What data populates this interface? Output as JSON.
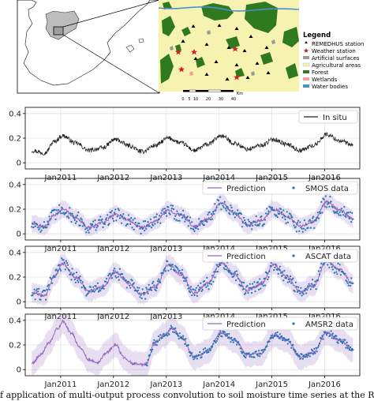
{
  "map_panel": {
    "legend_title": "Legend",
    "legend_items": [
      {
        "label": "REMEDHUS station",
        "symbol": "triangle",
        "color": "#000000"
      },
      {
        "label": "Weather station",
        "symbol": "star",
        "color": "#d42020"
      },
      {
        "label": "Artificial surfaces",
        "symbol": "box",
        "color": "#9a9a9a"
      },
      {
        "label": "Agricultural areas",
        "symbol": "box",
        "color": "#f6f2b0"
      },
      {
        "label": "Forest",
        "symbol": "box",
        "color": "#2f7a1f"
      },
      {
        "label": "Wetlands",
        "symbol": "box",
        "color": "#f0a0a0"
      },
      {
        "label": "Water bodies",
        "symbol": "box",
        "color": "#4b8fd6"
      }
    ],
    "scale_ticks": [
      "0",
      "5",
      "10",
      "20",
      "30",
      "40"
    ],
    "scale_unit": "Km"
  },
  "caption": "f application of multi-output process convolution to soil moisture time series at the REMEDHUS network",
  "chart_data": [
    {
      "type": "line",
      "xlim": [
        "2010-05-01",
        "2016-08-31"
      ],
      "ylim": [
        -0.05,
        0.45
      ],
      "yticks": [
        0,
        0.2,
        0.4
      ],
      "ytick_labels": [
        "0",
        "0.2",
        "0.4"
      ],
      "x_ticks": [
        "2011-01-01",
        "2012-01-01",
        "2013-01-01",
        "2014-01-01",
        "2015-01-01",
        "2016-01-01"
      ],
      "x_tick_labels": [
        "Jan2011",
        "Jan2012",
        "Jan2013",
        "Jan2014",
        "Jan2015",
        "Jan2016"
      ],
      "grid": true,
      "legend_position": "upper right",
      "series": [
        {
          "name": "In situ",
          "kind": "line",
          "color": "#222222",
          "x": [
            "2010-06",
            "2010-09",
            "2010-11",
            "2011-01",
            "2011-04",
            "2011-07",
            "2011-10",
            "2012-01",
            "2012-04",
            "2012-07",
            "2012-10",
            "2013-01",
            "2013-04",
            "2013-07",
            "2013-10",
            "2014-01",
            "2014-04",
            "2014-07",
            "2014-10",
            "2015-01",
            "2015-04",
            "2015-07",
            "2015-10",
            "2016-01",
            "2016-04",
            "2016-07"
          ],
          "y": [
            0.1,
            0.08,
            0.17,
            0.22,
            0.16,
            0.1,
            0.12,
            0.19,
            0.14,
            0.09,
            0.14,
            0.2,
            0.16,
            0.1,
            0.15,
            0.22,
            0.16,
            0.11,
            0.14,
            0.19,
            0.15,
            0.1,
            0.14,
            0.23,
            0.18,
            0.14
          ]
        }
      ]
    },
    {
      "type": "line",
      "xlim": [
        "2010-05-01",
        "2016-08-31"
      ],
      "ylim": [
        -0.05,
        0.45
      ],
      "yticks": [
        0,
        0.2,
        0.4
      ],
      "ytick_labels": [
        "0",
        "0.2",
        "0.4"
      ],
      "x_ticks": [
        "2011-01-01",
        "2012-01-01",
        "2013-01-01",
        "2014-01-01",
        "2015-01-01",
        "2016-01-01"
      ],
      "x_tick_labels": [
        "Jan2011",
        "Jan2012",
        "Jan2013",
        "Jan2014",
        "Jan2015",
        "Jan2016"
      ],
      "grid": true,
      "legend_position": "upper right",
      "series": [
        {
          "name": "Prediction",
          "kind": "line_band",
          "color": "#9467bd",
          "x": [
            "2010-06",
            "2010-09",
            "2010-11",
            "2011-01",
            "2011-04",
            "2011-07",
            "2011-10",
            "2012-01",
            "2012-04",
            "2012-07",
            "2012-10",
            "2013-01",
            "2013-04",
            "2013-07",
            "2013-10",
            "2014-01",
            "2014-04",
            "2014-07",
            "2014-10",
            "2015-01",
            "2015-04",
            "2015-07",
            "2015-10",
            "2016-01",
            "2016-04",
            "2016-07"
          ],
          "y": [
            0.08,
            0.06,
            0.15,
            0.2,
            0.13,
            0.05,
            0.09,
            0.16,
            0.11,
            0.05,
            0.1,
            0.19,
            0.15,
            0.06,
            0.12,
            0.25,
            0.17,
            0.07,
            0.11,
            0.2,
            0.14,
            0.06,
            0.1,
            0.26,
            0.19,
            0.12
          ],
          "band": 0.07
        },
        {
          "name": "SMOS data",
          "kind": "scatter",
          "color": "#1f77b4",
          "x": [
            "2010-06",
            "2010-09",
            "2010-11",
            "2011-01",
            "2011-04",
            "2011-07",
            "2011-10",
            "2012-01",
            "2012-04",
            "2012-07",
            "2012-10",
            "2013-01",
            "2013-04",
            "2013-07",
            "2013-10",
            "2014-01",
            "2014-04",
            "2014-07",
            "2014-10",
            "2015-01",
            "2015-04",
            "2015-07",
            "2015-10",
            "2016-01",
            "2016-04",
            "2016-07"
          ],
          "y": [
            0.08,
            0.06,
            0.15,
            0.2,
            0.13,
            0.05,
            0.09,
            0.16,
            0.11,
            0.05,
            0.1,
            0.19,
            0.15,
            0.06,
            0.12,
            0.25,
            0.17,
            0.07,
            0.11,
            0.2,
            0.14,
            0.06,
            0.1,
            0.26,
            0.19,
            0.12
          ],
          "spread": 0.11
        }
      ]
    },
    {
      "type": "line",
      "xlim": [
        "2010-05-01",
        "2016-08-31"
      ],
      "ylim": [
        -0.05,
        0.45
      ],
      "yticks": [
        0,
        0.2,
        0.4
      ],
      "ytick_labels": [
        "0",
        "0.2",
        "0.4"
      ],
      "x_ticks": [
        "2011-01-01",
        "2012-01-01",
        "2013-01-01",
        "2014-01-01",
        "2015-01-01",
        "2016-01-01"
      ],
      "x_tick_labels": [
        "Jan2011",
        "Jan2012",
        "Jan2013",
        "Jan2014",
        "Jan2015",
        "Jan2016"
      ],
      "grid": true,
      "legend_position": "upper right",
      "series": [
        {
          "name": "Prediction",
          "kind": "line_band",
          "color": "#9467bd",
          "x": [
            "2010-06",
            "2010-09",
            "2010-11",
            "2011-01",
            "2011-04",
            "2011-07",
            "2011-10",
            "2012-01",
            "2012-04",
            "2012-07",
            "2012-10",
            "2013-01",
            "2013-04",
            "2013-07",
            "2013-10",
            "2014-01",
            "2014-04",
            "2014-07",
            "2014-10",
            "2015-01",
            "2015-04",
            "2015-07",
            "2015-10",
            "2016-01",
            "2016-04",
            "2016-07"
          ],
          "y": [
            0.07,
            0.05,
            0.2,
            0.31,
            0.2,
            0.08,
            0.12,
            0.24,
            0.15,
            0.06,
            0.12,
            0.3,
            0.22,
            0.07,
            0.15,
            0.32,
            0.22,
            0.09,
            0.14,
            0.3,
            0.2,
            0.08,
            0.13,
            0.33,
            0.26,
            0.15
          ],
          "band": 0.08
        },
        {
          "name": "ASCAT data",
          "kind": "scatter",
          "color": "#1f77b4",
          "x": [
            "2010-06",
            "2010-09",
            "2010-11",
            "2011-01",
            "2011-04",
            "2011-07",
            "2011-10",
            "2012-01",
            "2012-04",
            "2012-07",
            "2012-10",
            "2013-01",
            "2013-04",
            "2013-07",
            "2013-10",
            "2014-01",
            "2014-04",
            "2014-07",
            "2014-10",
            "2015-01",
            "2015-04",
            "2015-07",
            "2015-10",
            "2016-01",
            "2016-04",
            "2016-07"
          ],
          "y": [
            0.07,
            0.05,
            0.2,
            0.31,
            0.2,
            0.08,
            0.12,
            0.24,
            0.15,
            0.06,
            0.12,
            0.3,
            0.22,
            0.07,
            0.15,
            0.32,
            0.22,
            0.09,
            0.14,
            0.3,
            0.2,
            0.08,
            0.13,
            0.33,
            0.26,
            0.15
          ],
          "spread": 0.1
        }
      ]
    },
    {
      "type": "line",
      "xlim": [
        "2010-05-01",
        "2016-08-31"
      ],
      "ylim": [
        -0.05,
        0.45
      ],
      "yticks": [
        0,
        0.2,
        0.4
      ],
      "ytick_labels": [
        "0",
        "0.2",
        "0.4"
      ],
      "x_ticks": [
        "2011-01-01",
        "2012-01-01",
        "2013-01-01",
        "2014-01-01",
        "2015-01-01",
        "2016-01-01"
      ],
      "x_tick_labels": [
        "Jan2011",
        "Jan2012",
        "Jan2013",
        "Jan2014",
        "Jan2015",
        "Jan2016"
      ],
      "grid": true,
      "legend_position": "upper right",
      "series": [
        {
          "name": "Prediction",
          "kind": "line_band",
          "color": "#9467bd",
          "x": [
            "2010-06",
            "2010-08",
            "2010-10",
            "2010-12",
            "2011-01",
            "2011-03",
            "2011-05",
            "2011-07",
            "2011-09",
            "2011-11",
            "2012-01",
            "2012-03",
            "2012-05",
            "2012-07",
            "2012-08",
            "2012-10",
            "2012-12",
            "2013-02",
            "2013-04",
            "2013-07",
            "2013-10",
            "2014-01",
            "2014-04",
            "2014-07",
            "2014-10",
            "2015-01",
            "2015-04",
            "2015-07",
            "2015-10",
            "2016-01",
            "2016-04",
            "2016-07"
          ],
          "y": [
            0.05,
            0.12,
            0.22,
            0.34,
            0.39,
            0.3,
            0.18,
            0.08,
            0.06,
            0.14,
            0.2,
            0.1,
            0.05,
            0.04,
            0.05,
            0.22,
            0.28,
            0.33,
            0.26,
            0.1,
            0.15,
            0.3,
            0.24,
            0.12,
            0.13,
            0.28,
            0.24,
            0.1,
            0.14,
            0.3,
            0.24,
            0.16
          ],
          "band": 0.1
        },
        {
          "name": "AMSR2 data",
          "kind": "scatter",
          "color": "#1f77b4",
          "x": [
            "2012-08",
            "2012-10",
            "2012-12",
            "2013-02",
            "2013-04",
            "2013-07",
            "2013-10",
            "2014-01",
            "2014-04",
            "2014-07",
            "2014-10",
            "2015-01",
            "2015-04",
            "2015-07",
            "2015-10",
            "2016-01",
            "2016-04",
            "2016-07"
          ],
          "y": [
            0.05,
            0.22,
            0.28,
            0.33,
            0.26,
            0.1,
            0.15,
            0.3,
            0.24,
            0.12,
            0.13,
            0.28,
            0.24,
            0.1,
            0.14,
            0.3,
            0.24,
            0.16
          ],
          "spread": 0.06
        }
      ]
    }
  ]
}
